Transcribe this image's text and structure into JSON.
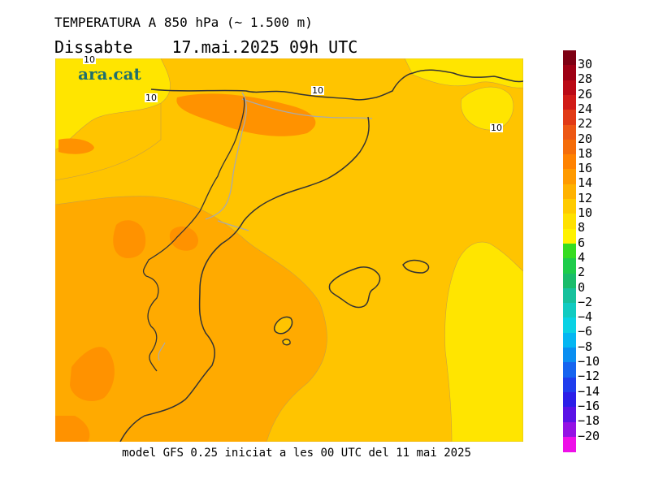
{
  "header": {
    "title": "TEMPERATURA A 850 hPa (~ 1.500 m)",
    "subtitle": "Dissabte    17.mai.2025 09h UTC"
  },
  "logo": {
    "text": "ara.cat",
    "color": "#1f6f6d"
  },
  "footer": {
    "text": "model GFS 0.25 iniciat a les 00 UTC del 11 mai 2025"
  },
  "map": {
    "colors": {
      "band_8_10": "#ffe500",
      "band_10_12": "#ffc400",
      "band_12_14": "#ffaa00",
      "band_14_16": "#ff9200",
      "coast": "#333333",
      "border": "#aaaaaa",
      "contour": "#b8a060"
    },
    "contour_labels": [
      "10",
      "10",
      "10",
      "10"
    ]
  },
  "legend": {
    "items": [
      {
        "label": "30",
        "color": "#7e0013"
      },
      {
        "label": "28",
        "color": "#9e0014"
      },
      {
        "label": "26",
        "color": "#bb0a16"
      },
      {
        "label": "24",
        "color": "#d11b17"
      },
      {
        "label": "22",
        "color": "#e13a16"
      },
      {
        "label": "20",
        "color": "#ed5714"
      },
      {
        "label": "18",
        "color": "#f56d0a"
      },
      {
        "label": "16",
        "color": "#ff8200"
      },
      {
        "label": "14",
        "color": "#ff9a00"
      },
      {
        "label": "12",
        "color": "#ffb200"
      },
      {
        "label": "10",
        "color": "#ffcb00"
      },
      {
        "label": "8",
        "color": "#ffe100"
      },
      {
        "label": "6",
        "color": "#fff200"
      },
      {
        "label": "4",
        "color": "#35dc21"
      },
      {
        "label": "2",
        "color": "#1ecc4a"
      },
      {
        "label": "0",
        "color": "#1abc6a"
      },
      {
        "label": "−2",
        "color": "#17c19c"
      },
      {
        "label": "−4",
        "color": "#12cbc1"
      },
      {
        "label": "−6",
        "color": "#0ad2e4"
      },
      {
        "label": "−8",
        "color": "#05b6f2"
      },
      {
        "label": "−10",
        "color": "#0a8ef1"
      },
      {
        "label": "−12",
        "color": "#1664ef"
      },
      {
        "label": "−14",
        "color": "#1f3ded"
      },
      {
        "label": "−16",
        "color": "#2c1ee8"
      },
      {
        "label": "−18",
        "color": "#5a12e6"
      },
      {
        "label": "−20",
        "color": "#9412e4"
      },
      {
        "label": "",
        "color": "#ee10e8"
      }
    ]
  }
}
